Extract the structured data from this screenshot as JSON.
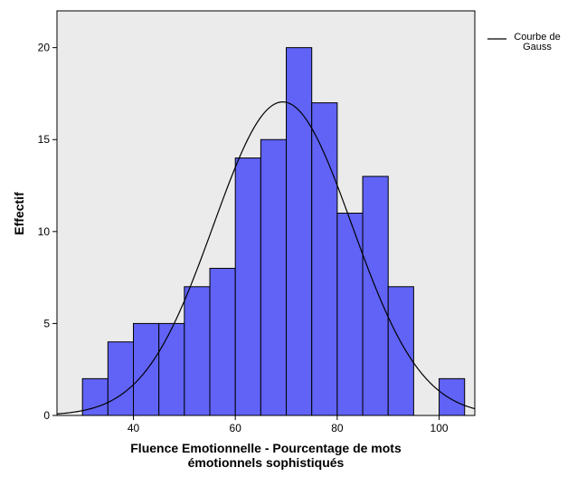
{
  "colors": {
    "plot_background": "#ebebeb",
    "bar_fill": "#6063f6",
    "bar_stroke": "#000000",
    "curve": "#000000",
    "page_background": "#ffffff"
  },
  "chart_data": {
    "type": "bar",
    "subtype": "histogram",
    "xlabel_lines": [
      "Fluence Emotionnelle - Pourcentage de mots",
      "émotionnels sophistiqués"
    ],
    "ylabel": "Effectif",
    "xlim": [
      25,
      107
    ],
    "ylim": [
      0,
      22
    ],
    "x_ticks": [
      40,
      60,
      80,
      100
    ],
    "y_ticks": [
      0,
      5,
      10,
      15,
      20
    ],
    "bin_width": 5,
    "bins": [
      {
        "start": 30,
        "end": 35,
        "count": 2
      },
      {
        "start": 35,
        "end": 40,
        "count": 4
      },
      {
        "start": 40,
        "end": 45,
        "count": 5
      },
      {
        "start": 45,
        "end": 50,
        "count": 5
      },
      {
        "start": 50,
        "end": 55,
        "count": 7
      },
      {
        "start": 55,
        "end": 60,
        "count": 8
      },
      {
        "start": 60,
        "end": 65,
        "count": 14
      },
      {
        "start": 65,
        "end": 70,
        "count": 15
      },
      {
        "start": 70,
        "end": 75,
        "count": 20
      },
      {
        "start": 75,
        "end": 80,
        "count": 17
      },
      {
        "start": 80,
        "end": 85,
        "count": 11
      },
      {
        "start": 85,
        "end": 90,
        "count": 13
      },
      {
        "start": 90,
        "end": 95,
        "count": 7
      },
      {
        "start": 95,
        "end": 100,
        "count": 0
      },
      {
        "start": 100,
        "end": 105,
        "count": 2
      }
    ],
    "normal_curve": {
      "mean": 69.3,
      "sd": 13.6,
      "peak": 17.05
    },
    "legend": {
      "placement": "top-right",
      "entries": [
        "Courbe de",
        "Gauss"
      ]
    },
    "grid": false
  }
}
